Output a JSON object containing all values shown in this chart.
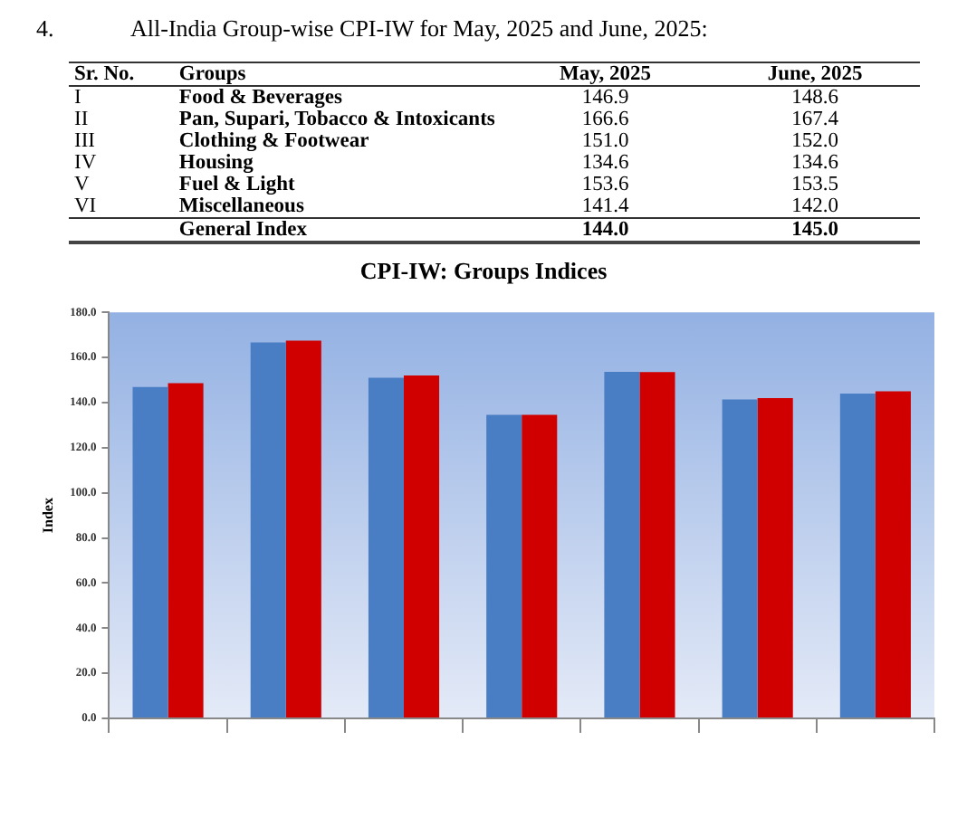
{
  "chart_data": [
    {
      "type": "other",
      "title": "All-India Group-wise CPI-IW for May, 2025 and June, 2025:",
      "annotations": [
        "4.",
        "Sr. No.",
        "Groups",
        "May, 2025",
        "June, 2025",
        "I",
        "Food & Beverages",
        "146.9",
        "148.6",
        "II",
        "Pan, Supari, Tobacco & Intoxicants",
        "166.6",
        "167.4",
        "III",
        "Clothing & Footwear",
        "151.0",
        "152.0",
        "IV",
        "Housing",
        "134.6",
        "134.6",
        "V",
        "Fuel & Light",
        "153.6",
        "153.5",
        "VI",
        "Miscellaneous",
        "141.4",
        "142.0",
        "General Index",
        "144.0",
        "145.0"
      ]
    },
    {
      "type": "bar",
      "title": "CPI-IW: Groups Indices",
      "ylabel": "Index",
      "categories": [
        null,
        null,
        null,
        null,
        null,
        null,
        null
      ],
      "series": [
        {
          "color": "#4a7ec4",
          "values": [
            146.9,
            166.6,
            151.0,
            134.6,
            153.6,
            141.4,
            144.0
          ]
        },
        {
          "color": "#d00000",
          "values": [
            148.6,
            167.4,
            152.0,
            134.6,
            153.5,
            142.0,
            145.0
          ]
        }
      ],
      "ylim": [
        0,
        180
      ],
      "yticks": [
        {
          "value": 0,
          "label": "0.0"
        },
        {
          "value": 20,
          "label": "20.0"
        },
        {
          "value": 40,
          "label": "40.0"
        },
        {
          "value": 60,
          "label": "60.0"
        },
        {
          "value": 80,
          "label": "80.0"
        },
        {
          "value": 100,
          "label": "100.0"
        },
        {
          "value": 120,
          "label": "120.0"
        },
        {
          "value": 140,
          "label": "140.0"
        },
        {
          "value": 160,
          "label": "160.0"
        },
        {
          "value": 180,
          "label": "180.0"
        }
      ],
      "tick_labels": "y",
      "grid": false
    }
  ]
}
